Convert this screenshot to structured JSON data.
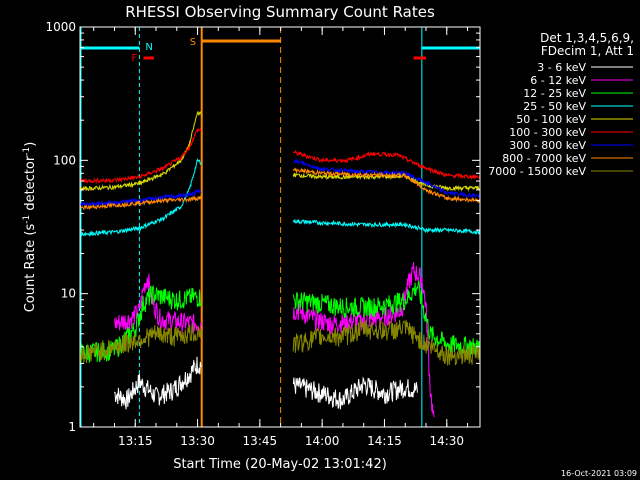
{
  "chart_data": {
    "type": "line",
    "title": "RHESSI Observing Summary Count Rates",
    "xlabel": "Start Time (20-May-02 13:01:42)",
    "ylabel_main": "Count Rate (s",
    "ylabel_sup1": "-1",
    "ylabel_mid": " detector",
    "ylabel_sup2": "-1",
    "ylabel_end": ")",
    "yscale": "log",
    "ylim": [
      1,
      1000
    ],
    "xlim": [
      "13:01:42",
      "14:38:00"
    ],
    "x_ticks": [
      "13:15",
      "13:30",
      "13:45",
      "14:00",
      "14:15",
      "14:30"
    ],
    "y_ticks": [
      "1",
      "10",
      "100",
      "1000"
    ],
    "date_stamp": "16-Oct-2021 03:09",
    "legend": {
      "header1": "Det 1,3,4,5,6,9,",
      "header2": "FDecim 1, Att 1",
      "position": "right"
    },
    "flags": {
      "F": "F",
      "N": "N",
      "S": "S"
    },
    "night_intervals": [
      [
        "13:01:42",
        "13:16:00"
      ],
      [
        "14:24:00",
        "14:38:00"
      ]
    ],
    "saa_interval": [
      "13:31:00",
      "13:50:00"
    ],
    "flare_intervals": [
      [
        "13:17:00",
        "13:19:30"
      ],
      [
        "14:22:00",
        "14:25:00"
      ]
    ],
    "gap": [
      "13:31:00",
      "13:53:00"
    ],
    "series": [
      {
        "name": "3 - 6 keV",
        "color": "#ffffff",
        "x": [
          "13:10",
          "13:13",
          "13:16",
          "13:20",
          "13:24",
          "13:28",
          "13:30",
          "13:55",
          "14:00",
          "14:05",
          "14:10",
          "14:15",
          "14:20",
          "14:23"
        ],
        "values": [
          1.8,
          1.6,
          2.2,
          1.7,
          1.9,
          2.5,
          3.0,
          2.0,
          1.8,
          1.6,
          2.1,
          1.8,
          2.0,
          1.9
        ]
      },
      {
        "name": "6 - 12 keV",
        "color": "#ff00ff",
        "x": [
          "13:10",
          "13:14",
          "13:16",
          "13:17",
          "13:18",
          "13:19",
          "13:21",
          "13:25",
          "13:29",
          "13:54",
          "13:58",
          "14:02",
          "14:07",
          "14:12",
          "14:15",
          "14:19",
          "14:21",
          "14:22",
          "14:24",
          "14:25",
          "14:26",
          "14:27"
        ],
        "values": [
          6.0,
          6.5,
          7.5,
          11.0,
          13.5,
          9.0,
          6.5,
          6.2,
          6.0,
          7.5,
          6.5,
          6.0,
          6.2,
          6.5,
          6.8,
          7.5,
          12.5,
          15.0,
          13.0,
          8.0,
          2.0,
          1.0
        ]
      },
      {
        "name": "12 - 25 keV",
        "color": "#00ff00",
        "x": [
          "13:01:42",
          "13:10",
          "13:15",
          "13:17",
          "13:19",
          "13:25",
          "13:29",
          "13:53",
          "14:00",
          "14:05",
          "14:10",
          "14:15",
          "14:20",
          "14:23",
          "14:26",
          "14:30",
          "14:38"
        ],
        "values": [
          3.6,
          3.8,
          5.5,
          8.5,
          10.0,
          9.0,
          9.5,
          9.0,
          8.5,
          8.0,
          8.0,
          8.2,
          9.0,
          11.5,
          5.0,
          4.2,
          4.0
        ]
      },
      {
        "name": "25 - 50 keV",
        "color": "#00ffff",
        "x": [
          "13:01:42",
          "13:10",
          "13:16",
          "13:22",
          "13:26",
          "13:28",
          "13:30",
          "13:53",
          "14:00",
          "14:10",
          "14:20",
          "14:25",
          "14:30",
          "14:38"
        ],
        "values": [
          28,
          29,
          31,
          37,
          45,
          60,
          100,
          35,
          34,
          33,
          33,
          30,
          30,
          29
        ]
      },
      {
        "name": "50 - 100 keV",
        "color": "#dddd00",
        "x": [
          "13:01:42",
          "13:10",
          "13:16",
          "13:22",
          "13:26",
          "13:28",
          "13:30",
          "13:53",
          "14:00",
          "14:10",
          "14:20",
          "14:25",
          "14:30",
          "14:38"
        ],
        "values": [
          61,
          63,
          67,
          80,
          100,
          130,
          230,
          78,
          75,
          75,
          76,
          65,
          62,
          62
        ]
      },
      {
        "name": "100 - 300 keV",
        "color": "#ff0000",
        "x": [
          "13:01:42",
          "13:10",
          "13:16",
          "13:22",
          "13:26",
          "13:28",
          "13:30",
          "13:53",
          "14:00",
          "14:06",
          "14:12",
          "14:18",
          "14:24",
          "14:30",
          "14:38"
        ],
        "values": [
          70,
          71,
          75,
          88,
          105,
          125,
          170,
          115,
          100,
          100,
          112,
          110,
          90,
          77,
          75
        ]
      },
      {
        "name": "300 - 800 keV",
        "color": "#0000ff",
        "x": [
          "13:01:42",
          "13:10",
          "13:16",
          "13:22",
          "13:28",
          "13:30",
          "13:53",
          "14:00",
          "14:10",
          "14:20",
          "14:25",
          "14:30",
          "14:38"
        ],
        "values": [
          47,
          48,
          50,
          53,
          55,
          58,
          100,
          86,
          82,
          80,
          68,
          57,
          54
        ]
      },
      {
        "name": "800 - 7000 keV",
        "color": "#ff8800",
        "x": [
          "13:01:42",
          "13:10",
          "13:16",
          "13:22",
          "13:28",
          "13:30",
          "13:53",
          "14:00",
          "14:10",
          "14:20",
          "14:25",
          "14:30",
          "14:38"
        ],
        "values": [
          44,
          46,
          48,
          50,
          51,
          52,
          85,
          80,
          78,
          77,
          60,
          52,
          50
        ]
      },
      {
        "name": "7000 - 15000 keV",
        "color": "#888800",
        "x": [
          "13:01:42",
          "13:10",
          "13:15",
          "13:20",
          "13:25",
          "13:30",
          "13:53",
          "14:00",
          "14:05",
          "14:10",
          "14:15",
          "14:20",
          "14:25",
          "14:30",
          "14:38"
        ],
        "values": [
          3.5,
          4.0,
          4.5,
          5.0,
          4.8,
          5.2,
          4.2,
          4.8,
          4.8,
          5.5,
          5.3,
          5.5,
          4.2,
          3.5,
          3.5
        ]
      }
    ]
  }
}
